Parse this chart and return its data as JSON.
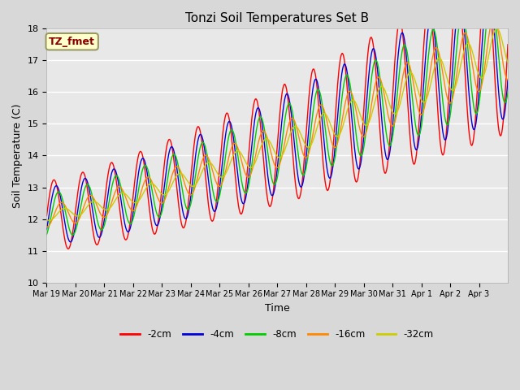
{
  "title": "Tonzi Soil Temperatures Set B",
  "xlabel": "Time",
  "ylabel": "Soil Temperature (C)",
  "ylim": [
    10.0,
    18.0
  ],
  "yticks": [
    10.0,
    11.0,
    12.0,
    13.0,
    14.0,
    15.0,
    16.0,
    17.0,
    18.0
  ],
  "annotation_text": "TZ_fmet",
  "annotation_bg": "#ffffcc",
  "annotation_border": "#999966",
  "annotation_fg": "#880000",
  "series_colors": [
    "#ff0000",
    "#0000dd",
    "#00cc00",
    "#ff8800",
    "#cccc00"
  ],
  "series_labels": [
    "-2cm",
    "-4cm",
    "-8cm",
    "-16cm",
    "-32cm"
  ],
  "n_days": 16,
  "plot_bg": "#e8e8e8",
  "fig_bg": "#d8d8d8",
  "xtick_labels": [
    "Mar 19",
    "Mar 20",
    "Mar 21",
    "Mar 22",
    "Mar 23",
    "Mar 24",
    "Mar 25",
    "Mar 26",
    "Mar 27",
    "Mar 28",
    "Mar 29",
    "Mar 30",
    "Mar 31",
    "Apr 1",
    "Apr 2",
    "Apr 3"
  ]
}
